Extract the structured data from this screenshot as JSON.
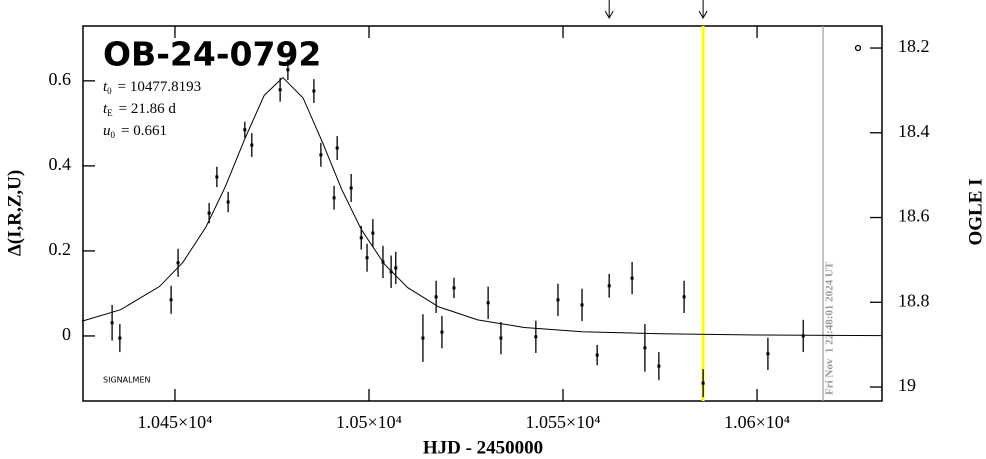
{
  "chart_data": {
    "type": "scatter",
    "title": "OB-24-0792",
    "annotations": [
      {
        "symbol": "t",
        "sub": "0",
        "text": "= 10477.8193"
      },
      {
        "symbol": "t",
        "sub": "E",
        "text": "= 21.86 d"
      },
      {
        "symbol": "u",
        "sub": "0",
        "text": "= 0.661"
      }
    ],
    "footnote": "SIGNALMEN",
    "timestamp": "Fri Nov  1 22:48:01 2024 UT",
    "x_label": "HJD - 2450000",
    "y_label": "Δ(I,R,Z,U)",
    "y2_label": "OGLE I",
    "x": [
      10433.8,
      10435.8,
      10449.0,
      10450.8,
      10458.8,
      10460.8,
      10463.7,
      10468.0,
      10469.8,
      10477.1,
      10479.1,
      10485.8,
      10487.6,
      10491.0,
      10491.8,
      10495.4,
      10498.0,
      10499.5,
      10501.0,
      10503.6,
      10505.7,
      10506.9,
      10513.9,
      10517.3,
      10518.8,
      10521.9,
      10530.7,
      10534.0,
      10543.0,
      10548.7,
      10554.9,
      10558.8,
      10561.9,
      10567.8,
      10571.1,
      10574.7,
      10581.2,
      10586.1,
      10602.8,
      10611.9
    ],
    "values": [
      0.031,
      -0.005,
      0.085,
      0.172,
      0.289,
      0.374,
      0.315,
      0.485,
      0.449,
      0.579,
      0.626,
      0.576,
      0.426,
      0.325,
      0.442,
      0.348,
      0.231,
      0.184,
      0.242,
      0.174,
      0.151,
      0.16,
      -0.005,
      0.092,
      0.009,
      0.113,
      0.078,
      -0.005,
      -0.002,
      0.085,
      0.073,
      -0.045,
      0.118,
      0.136,
      -0.028,
      -0.071,
      0.092,
      -0.111,
      -0.042,
      0.0
    ],
    "errors": [
      0.042,
      0.033,
      0.033,
      0.033,
      0.024,
      0.024,
      0.024,
      0.019,
      0.028,
      0.028,
      0.024,
      0.028,
      0.028,
      0.028,
      0.028,
      0.033,
      0.028,
      0.033,
      0.033,
      0.038,
      0.038,
      0.038,
      0.056,
      0.038,
      0.038,
      0.024,
      0.038,
      0.038,
      0.038,
      0.038,
      0.038,
      0.024,
      0.028,
      0.038,
      0.056,
      0.033,
      0.038,
      0.033,
      0.038,
      0.038
    ],
    "color": "#000000",
    "model": {
      "type": "line",
      "color": "#000000",
      "x": [
        10426,
        10436,
        10446,
        10452,
        10458,
        10463,
        10468,
        10473,
        10477.8,
        10483,
        10488,
        10493,
        10498,
        10504,
        10510,
        10518,
        10528,
        10540,
        10555,
        10575,
        10600,
        10632
      ],
      "values": [
        0.0345,
        0.0618,
        0.1162,
        0.1726,
        0.2565,
        0.3517,
        0.4638,
        0.5659,
        0.6078,
        0.56,
        0.4556,
        0.344,
        0.2506,
        0.1685,
        0.1135,
        0.0684,
        0.0379,
        0.02,
        0.0099,
        0.0053,
        0.0022,
        0.0009
      ]
    },
    "current_line": {
      "x": 10586.1,
      "color": "#ffff00"
    },
    "timestamp_line": {
      "x": 10617.0,
      "color": "#999999"
    },
    "arrows": [
      10561.9,
      10586.1
    ],
    "xlim": [
      10426.3,
      10632.2
    ],
    "xticks": [
      {
        "value": 10450,
        "label": "1.045×10⁴"
      },
      {
        "value": 10500,
        "label": "1.05×10⁴"
      },
      {
        "value": 10550,
        "label": "1.055×10⁴"
      },
      {
        "value": 10600,
        "label": "1.06×10⁴"
      }
    ],
    "ylim": [
      -0.153,
      0.729
    ],
    "yticks": [
      0,
      0.2,
      0.4,
      0.6
    ],
    "y2lim": [
      19.033,
      18.148
    ],
    "y2ticks": [
      18.2,
      18.4,
      18.6,
      18.8,
      19
    ]
  }
}
